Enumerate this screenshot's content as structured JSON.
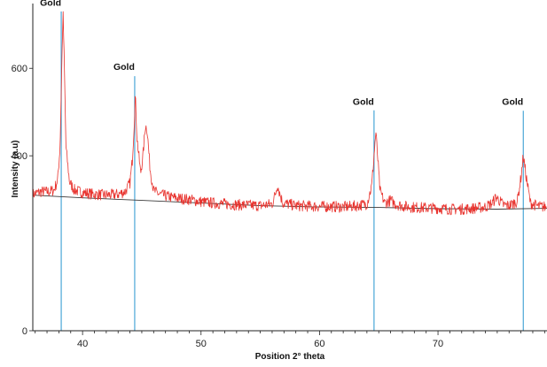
{
  "chart_data": {
    "type": "line",
    "title": "",
    "xlabel": "Position 2° theta",
    "ylabel": "Intensity (a.u)",
    "xlim": [
      35.8,
      79.2
    ],
    "ylim": [
      0,
      740
    ],
    "x_ticks": [
      40,
      50,
      60,
      70
    ],
    "y_ticks": [
      0,
      400,
      600
    ],
    "grid": false,
    "legend": "none",
    "colors": {
      "pattern": "#e8332e",
      "background_fit": "#3a3a3a",
      "reference_lines": "#4aa7d6"
    },
    "series": [
      {
        "values": [
          [
            35.8,
            312
          ],
          [
            36.5,
            318
          ],
          [
            37.2,
            318
          ],
          [
            37.6,
            322
          ],
          [
            37.9,
            345
          ],
          [
            38.1,
            420
          ],
          [
            38.25,
            610
          ],
          [
            38.35,
            730
          ],
          [
            38.45,
            620
          ],
          [
            38.6,
            420
          ],
          [
            38.9,
            340
          ],
          [
            39.3,
            322
          ],
          [
            40.0,
            316
          ],
          [
            41.0,
            312
          ],
          [
            42.0,
            310
          ],
          [
            43.0,
            312
          ],
          [
            43.6,
            318
          ],
          [
            44.0,
            338
          ],
          [
            44.2,
            390
          ],
          [
            44.35,
            470
          ],
          [
            44.45,
            540
          ],
          [
            44.6,
            440
          ],
          [
            44.9,
            360
          ],
          [
            45.1,
            400
          ],
          [
            45.3,
            470
          ],
          [
            45.45,
            460
          ],
          [
            45.7,
            370
          ],
          [
            46.0,
            320
          ],
          [
            46.5,
            312
          ],
          [
            47.5,
            305
          ],
          [
            49.0,
            300
          ],
          [
            50.0,
            295
          ],
          [
            51.0,
            292
          ],
          [
            52.0,
            290
          ],
          [
            53.0,
            288
          ],
          [
            54.0,
            287
          ],
          [
            55.0,
            286
          ],
          [
            56.0,
            290
          ],
          [
            56.3,
            315
          ],
          [
            56.45,
            335
          ],
          [
            56.6,
            318
          ],
          [
            56.9,
            292
          ],
          [
            58.0,
            286
          ],
          [
            59.0,
            285
          ],
          [
            60.0,
            284
          ],
          [
            61.0,
            284
          ],
          [
            62.0,
            283
          ],
          [
            63.0,
            285
          ],
          [
            64.0,
            290
          ],
          [
            64.4,
            330
          ],
          [
            64.6,
            400
          ],
          [
            64.75,
            455
          ],
          [
            64.9,
            400
          ],
          [
            65.1,
            320
          ],
          [
            65.5,
            292
          ],
          [
            66.0,
            298
          ],
          [
            66.4,
            290
          ],
          [
            67.0,
            285
          ],
          [
            68.0,
            282
          ],
          [
            69.0,
            281
          ],
          [
            70.0,
            280
          ],
          [
            71.0,
            278
          ],
          [
            72.0,
            278
          ],
          [
            73.0,
            280
          ],
          [
            74.0,
            283
          ],
          [
            74.6,
            292
          ],
          [
            74.9,
            306
          ],
          [
            75.1,
            300
          ],
          [
            75.5,
            288
          ],
          [
            76.0,
            286
          ],
          [
            76.7,
            296
          ],
          [
            77.0,
            350
          ],
          [
            77.2,
            400
          ],
          [
            77.4,
            360
          ],
          [
            77.8,
            292
          ],
          [
            78.5,
            284
          ],
          [
            79.2,
            283
          ]
        ]
      },
      {
        "values": [
          [
            35.8,
            310
          ],
          [
            40,
            304
          ],
          [
            45,
            298
          ],
          [
            50,
            292
          ],
          [
            55,
            286
          ],
          [
            60,
            283
          ],
          [
            65,
            282
          ],
          [
            70,
            279
          ],
          [
            75,
            278
          ],
          [
            79.2,
            280
          ]
        ]
      }
    ],
    "reference_lines": [
      {
        "x": 38.2,
        "height": 730
      },
      {
        "x": 44.4,
        "height": 582
      },
      {
        "x": 64.6,
        "height": 504
      },
      {
        "x": 77.2,
        "height": 503
      }
    ],
    "annotations": [
      {
        "text": "Gold",
        "x": 38.2,
        "y": 735
      },
      {
        "text": "Gold",
        "x": 44.4,
        "y": 588
      },
      {
        "text": "Gold",
        "x": 64.6,
        "y": 509
      },
      {
        "text": "Gold",
        "x": 77.2,
        "y": 508
      }
    ]
  }
}
